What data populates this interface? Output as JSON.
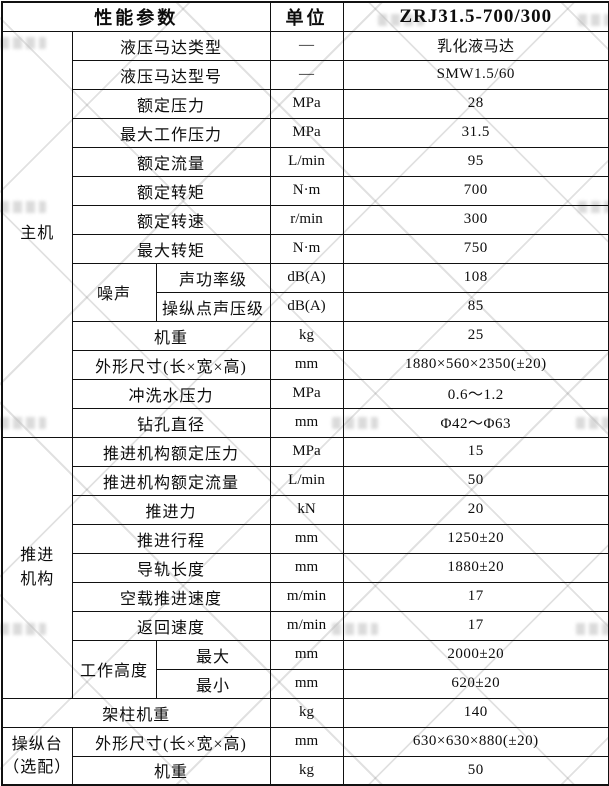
{
  "table": {
    "header": {
      "param_label": "性能参数",
      "unit_label": "单位",
      "model": "ZRJ31.5-700/300"
    },
    "groups": [
      {
        "label_lines": [
          "主机"
        ]
      },
      {
        "label_lines": [
          "推进",
          "机构"
        ]
      },
      {
        "label_lines": [
          "操纵台",
          "（选配）"
        ]
      }
    ],
    "rows": [
      {
        "param": "液压马达类型",
        "unit": "—",
        "value": "乳化液马达"
      },
      {
        "param": "液压马达型号",
        "unit": "—",
        "value": "SMW1.5/60"
      },
      {
        "param": "额定压力",
        "unit": "MPa",
        "value": "28"
      },
      {
        "param": "最大工作压力",
        "unit": "MPa",
        "value": "31.5"
      },
      {
        "param": "额定流量",
        "unit": "L/min",
        "value": "95"
      },
      {
        "param": "额定转矩",
        "unit": "N·m",
        "value": "700"
      },
      {
        "param": "额定转速",
        "unit": "r/min",
        "value": "300"
      },
      {
        "param": "最大转矩",
        "unit": "N·m",
        "value": "750"
      },
      {
        "subgroup": "噪声",
        "param": "声功率级",
        "unit": "dB(A)",
        "value": "108"
      },
      {
        "param": "操纵点声压级",
        "unit": "dB(A)",
        "value": "85"
      },
      {
        "param": "机重",
        "unit": "kg",
        "value": "25"
      },
      {
        "param": "外形尺寸(长×宽×高)",
        "unit": "mm",
        "value": "1880×560×2350(±20)"
      },
      {
        "param": "冲洗水压力",
        "unit": "MPa",
        "value": "0.6～1.2"
      },
      {
        "param": "钻孔直径",
        "unit": "mm",
        "value": "Φ42～Φ63"
      },
      {
        "param": "推进机构额定压力",
        "unit": "MPa",
        "value": "15"
      },
      {
        "param": "推进机构额定流量",
        "unit": "L/min",
        "value": "50"
      },
      {
        "param": "推进力",
        "unit": "kN",
        "value": "20"
      },
      {
        "param": "推进行程",
        "unit": "mm",
        "value": "1250±20"
      },
      {
        "param": "导轨长度",
        "unit": "mm",
        "value": "1880±20"
      },
      {
        "param": "空载推进速度",
        "unit": "m/min",
        "value": "17"
      },
      {
        "param": "返回速度",
        "unit": "m/min",
        "value": "17"
      },
      {
        "subgroup": "工作高度",
        "param": "最大",
        "unit": "mm",
        "value": "2000±20"
      },
      {
        "param": "最小",
        "unit": "mm",
        "value": "620±20"
      },
      {
        "param": "架柱机重",
        "unit": "kg",
        "value": "140"
      },
      {
        "param": "外形尺寸(长×宽×高)",
        "unit": "mm",
        "value": "630×630×880(±20)"
      },
      {
        "param": "机重",
        "unit": "kg",
        "value": "50"
      }
    ]
  }
}
